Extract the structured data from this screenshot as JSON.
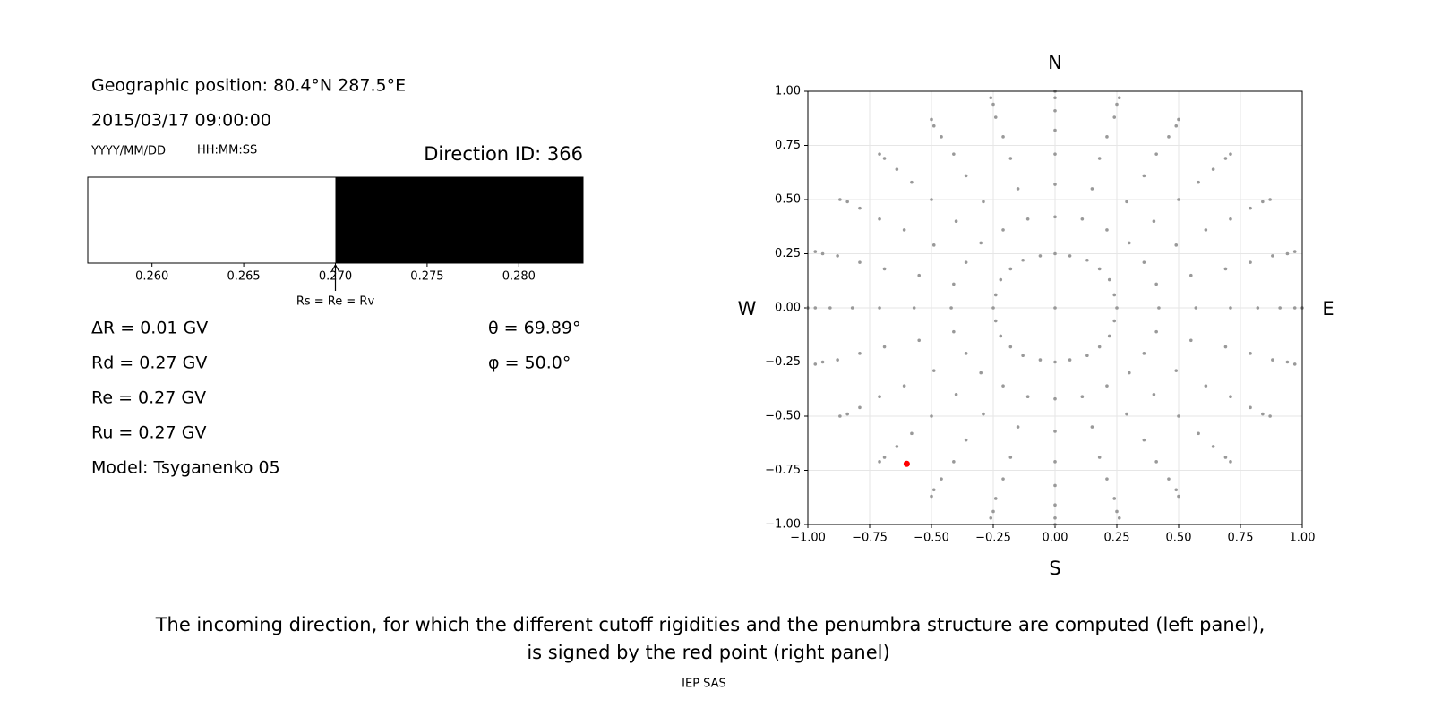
{
  "info": {
    "position": "Geographic position: 80.4°N 287.5°E",
    "datetime": "2015/03/17 09:00:00",
    "date_format": "YYYY/MM/DD",
    "time_format": "HH:MM:SS",
    "direction": "Direction ID: 366",
    "left_values": [
      "ΔR = 0.01 GV",
      "Rd = 0.27 GV",
      "Re = 0.27 GV",
      "Ru = 0.27 GV",
      "Model: Tsyganenko 05"
    ],
    "right_values": [
      "θ = 69.89°",
      "φ = 50.0°"
    ]
  },
  "chart_data": [
    {
      "type": "penumbra",
      "xlim": [
        0.2565,
        0.2835
      ],
      "xticks": [
        {
          "value": 0.26,
          "label": "0.260"
        },
        {
          "value": 0.265,
          "label": "0.265"
        },
        {
          "value": 0.27,
          "label": "0.270"
        },
        {
          "value": 0.275,
          "label": "0.275"
        },
        {
          "value": 0.28,
          "label": "0.280"
        }
      ],
      "segments": [
        {
          "start": 0.2565,
          "end": 0.27,
          "color": "#ffffff"
        },
        {
          "start": 0.27,
          "end": 0.2835,
          "color": "#000000"
        }
      ],
      "annotation": {
        "text": "Rs = Re = Rv",
        "x": 0.27
      }
    },
    {
      "type": "scatter",
      "xlim": [
        -1,
        1
      ],
      "ylim": [
        -1,
        1
      ],
      "grid": true,
      "compass": {
        "north": "N",
        "south": "S",
        "west": "W",
        "east": "E"
      },
      "xticks": [
        {
          "value": -1,
          "label": "−1.00"
        },
        {
          "value": -0.75,
          "label": "−0.75"
        },
        {
          "value": -0.5,
          "label": "−0.50"
        },
        {
          "value": -0.25,
          "label": "−0.25"
        },
        {
          "value": 0,
          "label": "0.00"
        },
        {
          "value": 0.25,
          "label": "0.25"
        },
        {
          "value": 0.5,
          "label": "0.50"
        },
        {
          "value": 0.75,
          "label": "0.75"
        },
        {
          "value": 1,
          "label": "1.00"
        }
      ],
      "yticks": [
        {
          "value": -1,
          "label": "−1.00"
        },
        {
          "value": -0.75,
          "label": "−0.75"
        },
        {
          "value": -0.5,
          "label": "−0.50"
        },
        {
          "value": -0.25,
          "label": "−0.25"
        },
        {
          "value": 0,
          "label": "0.00"
        },
        {
          "value": 0.25,
          "label": "0.25"
        },
        {
          "value": 0.5,
          "label": "0.50"
        },
        {
          "value": 0.75,
          "label": "0.75"
        },
        {
          "value": 1,
          "label": "1.00"
        }
      ],
      "series": [
        {
          "color": "#999999",
          "x": [
            0,
            0.25,
            0.24,
            0.22,
            0.18,
            0.13,
            0.06,
            0,
            -0.06,
            -0.13,
            -0.18,
            -0.22,
            -0.24,
            -0.25,
            -0.24,
            -0.22,
            -0.18,
            -0.13,
            -0.06,
            0,
            0.06,
            0.13,
            0.18,
            0.22,
            0.24,
            0.42,
            0.57,
            0.71,
            0.82,
            0.91,
            0.97,
            1,
            0.41,
            0.55,
            0.69,
            0.79,
            0.88,
            0.94,
            0.97,
            0.36,
            0.49,
            0.61,
            0.71,
            0.79,
            0.84,
            0.87,
            0.3,
            0.4,
            0.5,
            0.58,
            0.64,
            0.69,
            0.71,
            0.21,
            0.29,
            0.36,
            0.41,
            0.46,
            0.49,
            0.5,
            0.11,
            0.15,
            0.18,
            0.21,
            0.24,
            0.25,
            0.26,
            0,
            0,
            0,
            0,
            0,
            0,
            0,
            -0.11,
            -0.15,
            -0.18,
            -0.21,
            -0.24,
            -0.25,
            -0.26,
            -0.21,
            -0.29,
            -0.36,
            -0.41,
            -0.46,
            -0.49,
            -0.5,
            -0.3,
            -0.4,
            -0.5,
            -0.58,
            -0.64,
            -0.69,
            -0.71,
            -0.36,
            -0.49,
            -0.61,
            -0.71,
            -0.79,
            -0.84,
            -0.87,
            -0.41,
            -0.55,
            -0.69,
            -0.79,
            -0.88,
            -0.94,
            -0.97,
            -0.42,
            -0.57,
            -0.71,
            -0.82,
            -0.91,
            -0.97,
            -1,
            -0.41,
            -0.55,
            -0.69,
            -0.79,
            -0.88,
            -0.94,
            -0.97,
            -0.36,
            -0.49,
            -0.61,
            -0.71,
            -0.79,
            -0.84,
            -0.87,
            -0.3,
            -0.4,
            -0.5,
            -0.58,
            -0.64,
            -0.69,
            -0.71,
            -0.21,
            -0.29,
            -0.36,
            -0.41,
            -0.46,
            -0.49,
            -0.5,
            -0.11,
            -0.15,
            -0.18,
            -0.21,
            -0.24,
            -0.25,
            -0.26,
            0,
            0,
            0,
            0,
            0,
            0,
            0,
            0.11,
            0.15,
            0.18,
            0.21,
            0.24,
            0.25,
            0.26,
            0.21,
            0.29,
            0.36,
            0.41,
            0.46,
            0.49,
            0.5,
            0.3,
            0.4,
            0.5,
            0.58,
            0.64,
            0.69,
            0.71,
            0.36,
            0.49,
            0.61,
            0.71,
            0.79,
            0.84,
            0.87,
            0.41,
            0.55,
            0.69,
            0.79,
            0.88,
            0.94,
            0.97
          ],
          "y": [
            0,
            0,
            0.06,
            0.13,
            0.18,
            0.22,
            0.24,
            0.25,
            0.24,
            0.22,
            0.18,
            0.13,
            0.06,
            0,
            -0.06,
            -0.13,
            -0.18,
            -0.22,
            -0.24,
            -0.25,
            -0.24,
            -0.22,
            -0.18,
            -0.13,
            -0.06,
            0,
            0,
            0,
            0,
            0,
            0,
            0,
            0.11,
            0.15,
            0.18,
            0.21,
            0.24,
            0.25,
            0.26,
            0.21,
            0.29,
            0.36,
            0.41,
            0.46,
            0.49,
            0.5,
            0.3,
            0.4,
            0.5,
            0.58,
            0.64,
            0.69,
            0.71,
            0.36,
            0.49,
            0.61,
            0.71,
            0.79,
            0.84,
            0.87,
            0.41,
            0.55,
            0.69,
            0.79,
            0.88,
            0.94,
            0.97,
            0.42,
            0.57,
            0.71,
            0.82,
            0.91,
            0.97,
            1,
            0.41,
            0.55,
            0.69,
            0.79,
            0.88,
            0.94,
            0.97,
            0.36,
            0.49,
            0.61,
            0.71,
            0.79,
            0.84,
            0.87,
            0.3,
            0.4,
            0.5,
            0.58,
            0.64,
            0.69,
            0.71,
            0.21,
            0.29,
            0.36,
            0.41,
            0.46,
            0.49,
            0.5,
            0.11,
            0.15,
            0.18,
            0.21,
            0.24,
            0.25,
            0.26,
            0,
            0,
            0,
            0,
            0,
            0,
            0,
            -0.11,
            -0.15,
            -0.18,
            -0.21,
            -0.24,
            -0.25,
            -0.26,
            -0.21,
            -0.29,
            -0.36,
            -0.41,
            -0.46,
            -0.49,
            -0.5,
            -0.3,
            -0.4,
            -0.5,
            -0.58,
            -0.64,
            -0.69,
            -0.71,
            -0.36,
            -0.49,
            -0.61,
            -0.71,
            -0.79,
            -0.84,
            -0.87,
            -0.41,
            -0.55,
            -0.69,
            -0.79,
            -0.88,
            -0.94,
            -0.97,
            -0.42,
            -0.57,
            -0.71,
            -0.82,
            -0.91,
            -0.97,
            -1,
            -0.41,
            -0.55,
            -0.69,
            -0.79,
            -0.88,
            -0.94,
            -0.97,
            -0.36,
            -0.49,
            -0.61,
            -0.71,
            -0.79,
            -0.84,
            -0.87,
            -0.3,
            -0.4,
            -0.5,
            -0.58,
            -0.64,
            -0.69,
            -0.71,
            -0.21,
            -0.29,
            -0.36,
            -0.41,
            -0.46,
            -0.49,
            -0.5,
            -0.11,
            -0.15,
            -0.18,
            -0.21,
            -0.24,
            -0.25,
            -0.26
          ]
        },
        {
          "color": "#ff0000",
          "x": [
            -0.6
          ],
          "y": [
            -0.72
          ]
        }
      ]
    }
  ],
  "caption": [
    "The incoming direction, for which the different cutoff rigidities and the penumbra structure are computed (left panel),",
    "is signed by the red point (right panel)"
  ],
  "footer": "IEP SAS"
}
